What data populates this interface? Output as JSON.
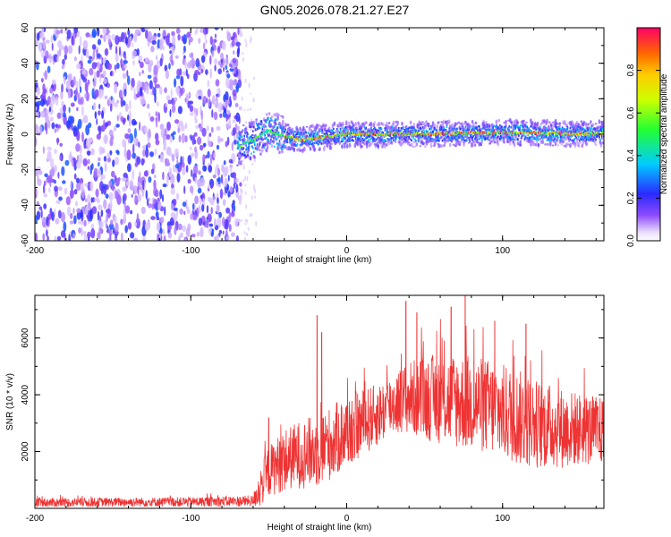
{
  "title": "GN05.2026.078.21.27.E27",
  "chart_data": [
    {
      "type": "heatmap",
      "name": "spectrogram",
      "xlabel": "Height of straight line (km)",
      "ylabel": "Frequency (Hz)",
      "xlim": [
        -200,
        165
      ],
      "ylim": [
        -60,
        60
      ],
      "xticks": [
        -200,
        -100,
        0,
        100
      ],
      "yticks": [
        -60,
        -40,
        -20,
        0,
        20,
        40,
        60
      ],
      "colorbar": {
        "label": "Normalized spectral amplitude",
        "range": [
          0,
          1
        ],
        "ticks": [
          0.0,
          0.2,
          0.4,
          0.6,
          0.8
        ]
      },
      "regions": [
        {
          "description": "broadband noise",
          "x_range": [
            -200,
            -68
          ],
          "freq_range": [
            -60,
            60
          ],
          "amplitude": 0.1
        },
        {
          "description": "signal band onset",
          "x_range": [
            -70,
            -40
          ],
          "freq_center": 0,
          "freq_halfwidth": 8,
          "amplitude": 0.4
        },
        {
          "description": "main signal band",
          "x_range": [
            -40,
            165
          ],
          "freq_center": 0,
          "freq_halfwidth": 4,
          "amplitude": 0.9
        }
      ],
      "ridge": {
        "x": [
          -70,
          -60,
          -50,
          -40,
          -30,
          0,
          50,
          100,
          165
        ],
        "freq": [
          -7,
          -3,
          2,
          -1,
          -3,
          0,
          0,
          1,
          0
        ]
      }
    },
    {
      "type": "line",
      "name": "snr",
      "xlabel": "Height of straight line (km)",
      "ylabel": "SNR (10 * v/v)",
      "xlim": [
        -200,
        165
      ],
      "ylim": [
        0,
        7500
      ],
      "xticks": [
        -200,
        -100,
        0,
        100
      ],
      "yticks": [
        2000,
        4000,
        6000
      ],
      "series": [
        {
          "name": "SNR",
          "color": "#ee3333",
          "envelope_x": [
            -200,
            -150,
            -100,
            -60,
            -56,
            -50,
            -40,
            -30,
            -20,
            -10,
            0,
            10,
            20,
            30,
            40,
            50,
            60,
            70,
            80,
            90,
            100,
            110,
            120,
            130,
            140,
            150,
            165
          ],
          "envelope_mid": [
            200,
            220,
            230,
            260,
            700,
            1300,
            1700,
            1900,
            2000,
            2300,
            2700,
            3000,
            3300,
            3700,
            3900,
            3900,
            3850,
            3800,
            3700,
            3600,
            3400,
            3200,
            3000,
            2900,
            2800,
            2800,
            2700
          ],
          "envelope_amp": [
            160,
            160,
            170,
            200,
            700,
            900,
            1100,
            1200,
            1300,
            1300,
            1300,
            1200,
            1100,
            1100,
            1300,
            1500,
            1600,
            1700,
            1700,
            1700,
            1700,
            1700,
            1600,
            1500,
            1400,
            1300,
            1200
          ],
          "spikes": [
            {
              "x": -19,
              "y": 6800
            },
            {
              "x": -16,
              "y": 6200
            },
            {
              "x": -50,
              "y": 3200
            },
            {
              "x": 38,
              "y": 7300
            },
            {
              "x": 45,
              "y": 6900
            },
            {
              "x": 67,
              "y": 7100
            },
            {
              "x": 76,
              "y": 7500
            },
            {
              "x": 95,
              "y": 6600
            },
            {
              "x": 115,
              "y": 6500
            }
          ]
        }
      ]
    }
  ]
}
